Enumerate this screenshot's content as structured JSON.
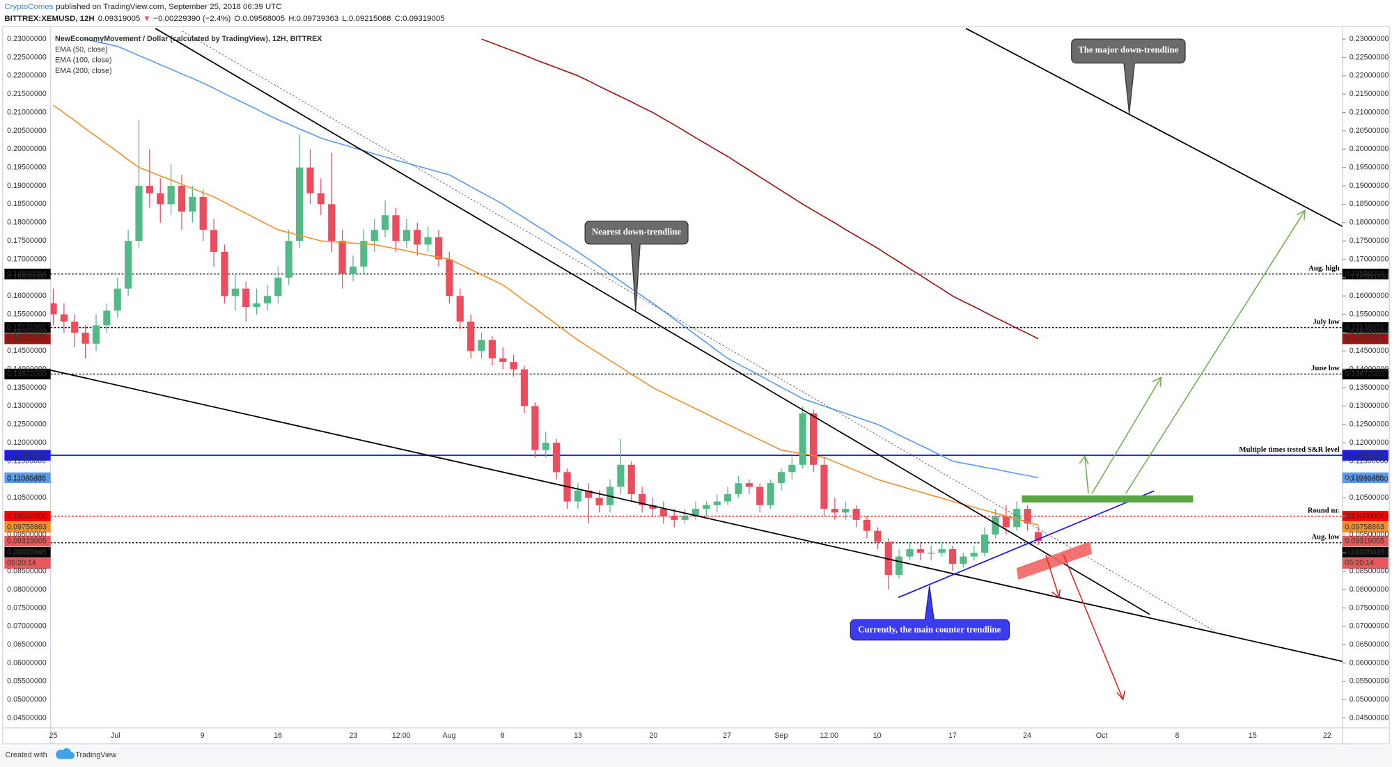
{
  "header": {
    "author": "CryptoComes",
    "published": "published on TradingView.com, September 25, 2018 06:39 UTC",
    "symbol": "BITTREX:XEMUSD, 12H",
    "arrow": "▼",
    "change": "−0.00229390 (−2.4%)",
    "open_label": "O:",
    "high_label": "H:",
    "low_label": "L:",
    "close_label": "C:"
  },
  "chart_data": {
    "type": "candlestick",
    "title": "NewEconomyMovement / Dollar (calculated by TradingView), 12H, BITTREX",
    "up_color": "#53b987",
    "down_color": "#eb4d5c",
    "price_color": "#e8585d",
    "countdown": "05:20:14",
    "grid": false,
    "ohlc": [
      [
        0.158,
        0.162,
        0.152,
        0.155
      ],
      [
        0.155,
        0.158,
        0.15,
        0.153
      ],
      [
        0.153,
        0.155,
        0.146,
        0.15
      ],
      [
        0.15,
        0.152,
        0.143,
        0.147
      ],
      [
        0.147,
        0.155,
        0.145,
        0.152
      ],
      [
        0.152,
        0.158,
        0.15,
        0.156
      ],
      [
        0.156,
        0.165,
        0.154,
        0.162
      ],
      [
        0.162,
        0.178,
        0.16,
        0.175
      ],
      [
        0.175,
        0.208,
        0.173,
        0.19
      ],
      [
        0.19,
        0.2,
        0.184,
        0.188
      ],
      [
        0.188,
        0.192,
        0.18,
        0.185
      ],
      [
        0.185,
        0.196,
        0.182,
        0.19
      ],
      [
        0.19,
        0.193,
        0.178,
        0.183
      ],
      [
        0.183,
        0.19,
        0.18,
        0.187
      ],
      [
        0.187,
        0.189,
        0.175,
        0.178
      ],
      [
        0.178,
        0.181,
        0.168,
        0.172
      ],
      [
        0.172,
        0.174,
        0.158,
        0.16
      ],
      [
        0.16,
        0.166,
        0.156,
        0.162
      ],
      [
        0.162,
        0.164,
        0.153,
        0.157
      ],
      [
        0.157,
        0.162,
        0.155,
        0.158
      ],
      [
        0.158,
        0.163,
        0.156,
        0.16
      ],
      [
        0.16,
        0.168,
        0.158,
        0.165
      ],
      [
        0.165,
        0.178,
        0.163,
        0.175
      ],
      [
        0.175,
        0.204,
        0.173,
        0.195
      ],
      [
        0.195,
        0.2,
        0.185,
        0.188
      ],
      [
        0.188,
        0.192,
        0.182,
        0.185
      ],
      [
        0.185,
        0.199,
        0.172,
        0.175
      ],
      [
        0.175,
        0.178,
        0.162,
        0.166
      ],
      [
        0.166,
        0.171,
        0.164,
        0.168
      ],
      [
        0.168,
        0.178,
        0.166,
        0.175
      ],
      [
        0.175,
        0.181,
        0.172,
        0.178
      ],
      [
        0.178,
        0.186,
        0.176,
        0.182
      ],
      [
        0.182,
        0.184,
        0.172,
        0.175
      ],
      [
        0.175,
        0.181,
        0.173,
        0.178
      ],
      [
        0.178,
        0.18,
        0.171,
        0.174
      ],
      [
        0.174,
        0.179,
        0.172,
        0.176
      ],
      [
        0.176,
        0.178,
        0.168,
        0.17
      ],
      [
        0.17,
        0.172,
        0.158,
        0.16
      ],
      [
        0.16,
        0.162,
        0.151,
        0.153
      ],
      [
        0.153,
        0.155,
        0.143,
        0.145
      ],
      [
        0.145,
        0.15,
        0.143,
        0.148
      ],
      [
        0.148,
        0.149,
        0.141,
        0.143
      ],
      [
        0.143,
        0.146,
        0.14,
        0.142
      ],
      [
        0.142,
        0.144,
        0.138,
        0.14
      ],
      [
        0.14,
        0.141,
        0.128,
        0.13
      ],
      [
        0.13,
        0.131,
        0.116,
        0.118
      ],
      [
        0.118,
        0.123,
        0.116,
        0.12
      ],
      [
        0.12,
        0.121,
        0.11,
        0.112
      ],
      [
        0.112,
        0.113,
        0.102,
        0.104
      ],
      [
        0.104,
        0.109,
        0.102,
        0.107
      ],
      [
        0.107,
        0.109,
        0.098,
        0.105
      ],
      [
        0.105,
        0.107,
        0.101,
        0.103
      ],
      [
        0.103,
        0.11,
        0.101,
        0.108
      ],
      [
        0.108,
        0.121,
        0.106,
        0.114
      ],
      [
        0.114,
        0.115,
        0.104,
        0.106
      ],
      [
        0.106,
        0.108,
        0.101,
        0.103
      ],
      [
        0.103,
        0.105,
        0.1,
        0.102
      ],
      [
        0.102,
        0.104,
        0.098,
        0.1
      ],
      [
        0.1,
        0.102,
        0.097,
        0.099
      ],
      [
        0.099,
        0.102,
        0.098,
        0.1
      ],
      [
        0.1,
        0.104,
        0.099,
        0.102
      ],
      [
        0.102,
        0.104,
        0.1,
        0.103
      ],
      [
        0.103,
        0.106,
        0.101,
        0.104
      ],
      [
        0.104,
        0.108,
        0.103,
        0.106
      ],
      [
        0.106,
        0.111,
        0.105,
        0.109
      ],
      [
        0.109,
        0.11,
        0.106,
        0.108
      ],
      [
        0.108,
        0.109,
        0.101,
        0.103
      ],
      [
        0.103,
        0.11,
        0.102,
        0.109
      ],
      [
        0.109,
        0.113,
        0.107,
        0.112
      ],
      [
        0.112,
        0.116,
        0.11,
        0.114
      ],
      [
        0.114,
        0.13,
        0.113,
        0.128
      ],
      [
        0.128,
        0.129,
        0.112,
        0.114
      ],
      [
        0.114,
        0.116,
        0.1,
        0.102
      ],
      [
        0.102,
        0.105,
        0.099,
        0.101
      ],
      [
        0.101,
        0.104,
        0.099,
        0.102
      ],
      [
        0.102,
        0.103,
        0.097,
        0.099
      ],
      [
        0.099,
        0.1,
        0.094,
        0.096
      ],
      [
        0.096,
        0.097,
        0.091,
        0.093
      ],
      [
        0.093,
        0.094,
        0.08,
        0.084
      ],
      [
        0.084,
        0.091,
        0.083,
        0.089
      ],
      [
        0.089,
        0.093,
        0.088,
        0.091
      ],
      [
        0.091,
        0.093,
        0.088,
        0.09
      ],
      [
        0.09,
        0.092,
        0.088,
        0.09
      ],
      [
        0.09,
        0.093,
        0.089,
        0.091
      ],
      [
        0.091,
        0.092,
        0.085,
        0.087
      ],
      [
        0.087,
        0.09,
        0.086,
        0.089
      ],
      [
        0.089,
        0.092,
        0.088,
        0.09
      ],
      [
        0.09,
        0.097,
        0.089,
        0.095
      ],
      [
        0.095,
        0.102,
        0.094,
        0.1
      ],
      [
        0.1,
        0.103,
        0.095,
        0.097
      ],
      [
        0.097,
        0.104,
        0.096,
        0.102
      ],
      [
        0.102,
        0.103,
        0.096,
        0.098
      ],
      [
        0.09568005,
        0.09739363,
        0.09215068,
        0.09319005
      ]
    ],
    "series": [
      {
        "name": "EMA (50, close)",
        "color": "#f0922b",
        "values": [
          0.212,
          0.2099,
          0.2078,
          0.2056,
          0.2035,
          0.2014,
          0.1993,
          0.1971,
          0.195,
          0.1939,
          0.1927,
          0.1916,
          0.1904,
          0.1893,
          0.1881,
          0.187,
          0.1855,
          0.184,
          0.1825,
          0.181,
          0.1795,
          0.178,
          0.1773,
          0.1765,
          0.1758,
          0.175,
          0.1748,
          0.1746,
          0.1744,
          0.1742,
          0.174,
          0.1734,
          0.1729,
          0.1723,
          0.1717,
          0.1711,
          0.1706,
          0.17,
          0.1686,
          0.1672,
          0.1658,
          0.1644,
          0.163,
          0.1609,
          0.1587,
          0.1566,
          0.1544,
          0.1523,
          0.1501,
          0.148,
          0.1461,
          0.1443,
          0.1424,
          0.1406,
          0.1387,
          0.1369,
          0.135,
          0.1336,
          0.1321,
          0.1307,
          0.1293,
          0.1279,
          0.1264,
          0.125,
          0.1236,
          0.1222,
          0.1208,
          0.1194,
          0.118,
          0.1175,
          0.117,
          0.1165,
          0.116,
          0.1148,
          0.1136,
          0.1124,
          0.1112,
          0.11,
          0.1091,
          0.1083,
          0.1074,
          0.1066,
          0.1057,
          0.1049,
          0.104,
          0.1032,
          0.1024,
          0.1016,
          0.1008,
          0.1,
          0.0992,
          0.0984,
          0.09758863
        ]
      },
      {
        "name": "EMA (100, close)",
        "color": "#5b9cf0",
        "values": [
          null,
          null,
          null,
          0.23,
          0.2293,
          0.2287,
          0.228,
          0.2268,
          0.2255,
          0.2243,
          0.223,
          0.2218,
          0.2205,
          0.2193,
          0.218,
          0.2166,
          0.2151,
          0.2137,
          0.2123,
          0.2109,
          0.2094,
          0.208,
          0.2068,
          0.2055,
          0.2043,
          0.203,
          0.2021,
          0.2013,
          0.2004,
          0.1996,
          0.1987,
          0.1979,
          0.197,
          0.1962,
          0.1954,
          0.1946,
          0.1938,
          0.193,
          0.1914,
          0.1898,
          0.1882,
          0.1866,
          0.185,
          0.1831,
          0.1813,
          0.1794,
          0.1776,
          0.1757,
          0.1739,
          0.172,
          0.17,
          0.168,
          0.166,
          0.164,
          0.162,
          0.16,
          0.158,
          0.1559,
          0.1537,
          0.1516,
          0.1494,
          0.1473,
          0.1451,
          0.143,
          0.1414,
          0.1399,
          0.1383,
          0.1367,
          0.1351,
          0.1336,
          0.132,
          0.131,
          0.13,
          0.129,
          0.128,
          0.127,
          0.126,
          0.125,
          0.1236,
          0.1221,
          0.1207,
          0.1193,
          0.1179,
          0.1164,
          0.115,
          0.1144,
          0.1139,
          0.1133,
          0.1128,
          0.1122,
          0.1116,
          0.1111,
          0.11046496
        ]
      },
      {
        "name": "EMA (200, close)",
        "color": "#a01414",
        "values": [
          null,
          null,
          null,
          null,
          null,
          null,
          null,
          null,
          null,
          null,
          null,
          null,
          null,
          null,
          null,
          null,
          null,
          null,
          null,
          null,
          null,
          null,
          null,
          null,
          null,
          null,
          null,
          null,
          null,
          null,
          null,
          null,
          null,
          null,
          null,
          null,
          null,
          null,
          null,
          null,
          0.23,
          0.2289,
          0.2278,
          0.2267,
          0.2256,
          0.2244,
          0.2233,
          0.2222,
          0.2211,
          0.22,
          0.2186,
          0.2171,
          0.2157,
          0.2143,
          0.2129,
          0.2114,
          0.21,
          0.2083,
          0.2066,
          0.2049,
          0.2031,
          0.2014,
          0.1997,
          0.198,
          0.1961,
          0.1943,
          0.1924,
          0.1906,
          0.1887,
          0.1869,
          0.185,
          0.1833,
          0.1816,
          0.1799,
          0.1781,
          0.1764,
          0.1747,
          0.173,
          0.1711,
          0.1693,
          0.1674,
          0.1656,
          0.1637,
          0.1619,
          0.16,
          0.1585,
          0.1571,
          0.1556,
          0.1541,
          0.1527,
          0.1512,
          0.1498,
          0.14833405
        ]
      }
    ],
    "levels": [
      {
        "name": "Aug. high",
        "value": 0.16598054,
        "color": "#000000",
        "line_style": "dotted"
      },
      {
        "name": "July low",
        "value": 0.15138951,
        "color": "#000000",
        "line_style": "dotted"
      },
      {
        "name": "June low",
        "value": 0.13872,
        "value_label": "0.13872000",
        "color": "#000000",
        "line_style": "dotted"
      },
      {
        "name": "Multiple times tested S&R level",
        "value": 0.11658325,
        "color": "#1c1cf0",
        "line_style": "solid"
      },
      {
        "name": "Round nr.",
        "value": 0.1,
        "value_label": "0.10000000",
        "color": "#ff0000",
        "line_style": "dotted"
      },
      {
        "name": "Aug. low",
        "value": 0.09275445,
        "color": "#000000",
        "line_style": "dotted"
      }
    ],
    "ylim": [
      0.0423,
      0.2329
    ],
    "yticks": [
      {
        "value": 0.045,
        "label": "0.04500000"
      },
      {
        "value": 0.05,
        "label": "0.05000000"
      },
      {
        "value": 0.055,
        "label": "0.05500000"
      },
      {
        "value": 0.06,
        "label": "0.06000000"
      },
      {
        "value": 0.065,
        "label": "0.06500000"
      },
      {
        "value": 0.07,
        "label": "0.07000000"
      },
      {
        "value": 0.075,
        "label": "0.07500000"
      },
      {
        "value": 0.08,
        "label": "0.08000000"
      },
      {
        "value": 0.085,
        "label": "0.08500000"
      },
      {
        "value": 0.09,
        "label": "0.09000000"
      },
      {
        "value": 0.095,
        "label": "0.09500000"
      },
      {
        "value": 0.1,
        "label": "0.10000000"
      },
      {
        "value": 0.105,
        "label": "0.10500000"
      },
      {
        "value": 0.11,
        "label": "0.11000000"
      },
      {
        "value": 0.115,
        "label": "0.11500000"
      },
      {
        "value": 0.12,
        "label": "0.12000000"
      },
      {
        "value": 0.125,
        "label": "0.12500000"
      },
      {
        "value": 0.13,
        "label": "0.13000000"
      },
      {
        "value": 0.135,
        "label": "0.13500000"
      },
      {
        "value": 0.14,
        "label": "0.14000000"
      },
      {
        "value": 0.145,
        "label": "0.14500000"
      },
      {
        "value": 0.15,
        "label": "0.15000000"
      },
      {
        "value": 0.155,
        "label": "0.15500000"
      },
      {
        "value": 0.16,
        "label": "0.16000000"
      },
      {
        "value": 0.165,
        "label": "0.16500000"
      },
      {
        "value": 0.17,
        "label": "0.17000000"
      },
      {
        "value": 0.175,
        "label": "0.17500000"
      },
      {
        "value": 0.18,
        "label": "0.18000000"
      },
      {
        "value": 0.185,
        "label": "0.18500000"
      },
      {
        "value": 0.19,
        "label": "0.19000000"
      },
      {
        "value": 0.195,
        "label": "0.19500000"
      },
      {
        "value": 0.2,
        "label": "0.20000000"
      },
      {
        "value": 0.205,
        "label": "0.20500000"
      },
      {
        "value": 0.21,
        "label": "0.21000000"
      },
      {
        "value": 0.215,
        "label": "0.21500000"
      },
      {
        "value": 0.22,
        "label": "0.22000000"
      },
      {
        "value": 0.225,
        "label": "0.22500000"
      },
      {
        "value": 0.23,
        "label": "0.23000000"
      }
    ],
    "xtick_labels": [
      "25",
      "Jul",
      "9",
      "16",
      "23",
      "12:00",
      "Aug",
      "6",
      "13",
      "20",
      "27",
      "Sep",
      "12:00",
      "10",
      "17",
      "24",
      "Oct",
      "8",
      "15",
      "22"
    ],
    "annotations": [
      "The major down-trendline",
      "Nearest down-trendline",
      "Currently, the main counter trendline"
    ]
  },
  "footer": {
    "created": "Created with",
    "brand": "TradingView"
  }
}
